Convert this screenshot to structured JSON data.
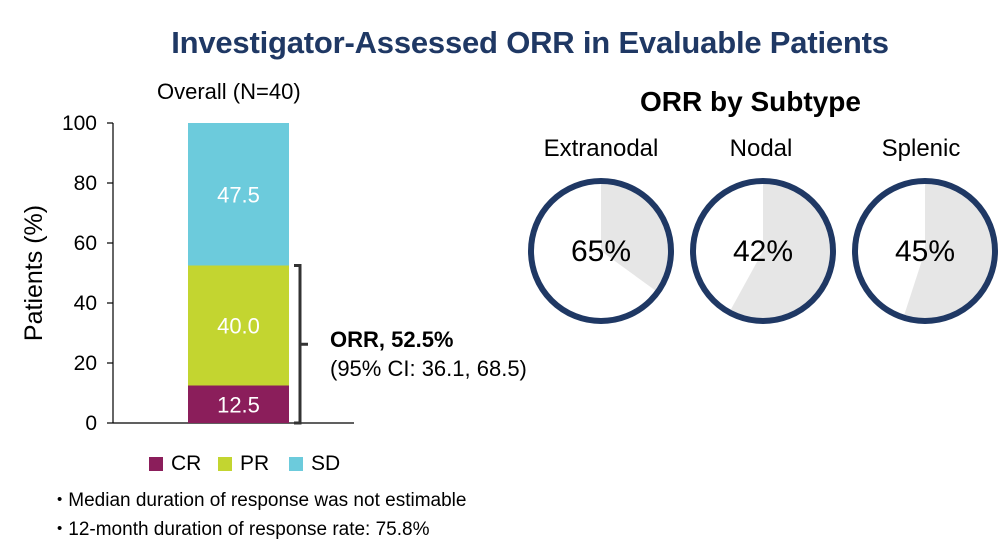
{
  "title": "Investigator-Assessed ORR in Evaluable Patients",
  "overall_label": "Overall (N=40)",
  "subtype_title": "ORR by Subtype",
  "orr_annotation": {
    "label": "ORR, 52.5%",
    "ci": "(95% CI: 36.1, 68.5)"
  },
  "legend": [
    {
      "name": "CR",
      "color": "#8b1e5b"
    },
    {
      "name": "PR",
      "color": "#c3d530"
    },
    {
      "name": "SD",
      "color": "#6ccbdc"
    }
  ],
  "bullets": [
    "Median duration of response was not estimable",
    "12-month duration of response rate: 75.8%"
  ],
  "chart_data": [
    {
      "type": "bar",
      "stacked": true,
      "categories": [
        "Overall (N=40)"
      ],
      "series": [
        {
          "name": "CR",
          "values": [
            12.5
          ],
          "color": "#8b1e5b"
        },
        {
          "name": "PR",
          "values": [
            40.0
          ],
          "color": "#c3d530"
        },
        {
          "name": "SD",
          "values": [
            47.5
          ],
          "color": "#6ccbdc"
        }
      ],
      "ylabel": "Patients (%)",
      "ylim": [
        0,
        100
      ],
      "yticks": [
        0,
        20,
        40,
        60,
        80,
        100
      ],
      "grid": false
    },
    {
      "type": "pie",
      "title": "ORR by Subtype",
      "slices": [
        {
          "label": "Extranodal",
          "value": 65,
          "display": "65%"
        },
        {
          "label": "Nodal",
          "value": 42,
          "display": "42%"
        },
        {
          "label": "Splenic",
          "value": 45,
          "display": "45%"
        }
      ],
      "ring_color": "#1f3864",
      "fill_color": "#e6e6e6"
    }
  ]
}
